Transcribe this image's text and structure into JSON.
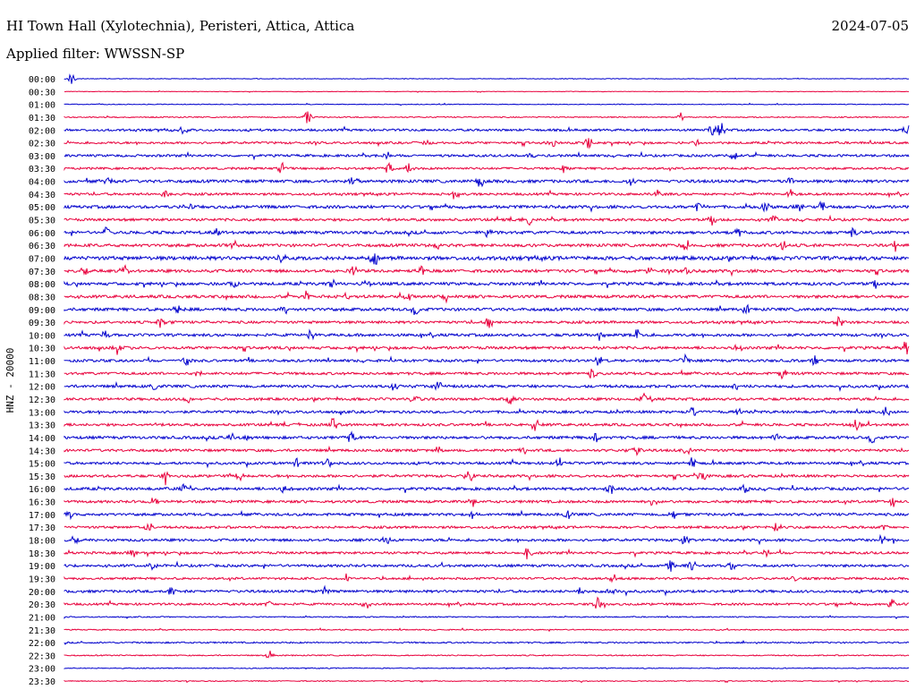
{
  "header": {
    "station": "HI Town Hall (Xylotechnia), Peristeri, Attica, Attica",
    "date": "2024-07-05",
    "filter": "Applied filter: WWSSN-SP"
  },
  "chart_data": {
    "type": "line",
    "description_kind": "helicorder",
    "ylabel": "HNZ - 20000",
    "row_labels": [
      "00:00",
      "00:30",
      "01:00",
      "01:30",
      "02:00",
      "02:30",
      "03:00",
      "03:30",
      "04:00",
      "04:30",
      "05:00",
      "05:30",
      "06:00",
      "06:30",
      "07:00",
      "07:30",
      "08:00",
      "08:30",
      "09:00",
      "09:30",
      "10:00",
      "10:30",
      "11:00",
      "11:30",
      "12:00",
      "12:30",
      "13:00",
      "13:30",
      "14:00",
      "14:30",
      "15:00",
      "15:30",
      "16:00",
      "16:30",
      "17:00",
      "17:30",
      "18:00",
      "18:30",
      "19:00",
      "19:30",
      "20:00",
      "20:30",
      "21:00",
      "21:30",
      "22:00",
      "22:30",
      "23:00",
      "23:30"
    ],
    "colors": [
      "#0000cc",
      "#e8003c"
    ],
    "noise_levels": [
      0.3,
      0.3,
      0.4,
      0.6,
      1.2,
      1.2,
      1.3,
      1.2,
      1.6,
      1.3,
      1.6,
      1.4,
      1.6,
      1.6,
      2.0,
      1.6,
      1.6,
      1.6,
      1.6,
      1.4,
      1.5,
      1.5,
      1.4,
      1.4,
      1.5,
      1.4,
      1.4,
      1.4,
      1.5,
      1.4,
      1.4,
      1.4,
      1.5,
      1.4,
      1.4,
      1.3,
      1.4,
      1.3,
      1.4,
      1.2,
      1.4,
      1.2,
      0.6,
      0.6,
      0.8,
      0.6,
      0.5,
      0.5
    ],
    "events": [
      [
        [
          8,
          5
        ]
      ],
      [],
      [],
      [
        [
          272,
          5
        ],
        [
          689,
          4
        ]
      ],
      [
        [
          133,
          4
        ],
        [
          724,
          5
        ],
        [
          734,
          6
        ],
        [
          942,
          4
        ]
      ],
      [
        [
          545,
          4
        ],
        [
          586,
          4
        ],
        [
          705,
          3
        ],
        [
          405,
          3
        ]
      ],
      [
        [
          362,
          4
        ],
        [
          523,
          4
        ],
        [
          748,
          3
        ]
      ],
      [
        [
          243,
          5
        ],
        [
          385,
          5
        ],
        [
          362,
          4
        ],
        [
          559,
          4
        ]
      ],
      [
        [
          50,
          4
        ],
        [
          323,
          4
        ],
        [
          465,
          5
        ],
        [
          633,
          4
        ],
        [
          812,
          4
        ]
      ],
      [
        [
          113,
          4
        ],
        [
          437,
          4
        ],
        [
          664,
          4
        ],
        [
          812,
          4
        ]
      ],
      [
        [
          139,
          4
        ],
        [
          709,
          4
        ],
        [
          784,
          4
        ],
        [
          822,
          4
        ],
        [
          846,
          4
        ]
      ],
      [
        [
          519,
          4
        ],
        [
          725,
          5
        ],
        [
          792,
          4
        ]
      ],
      [
        [
          47,
          4
        ],
        [
          168,
          4
        ],
        [
          474,
          4
        ],
        [
          754,
          4
        ],
        [
          882,
          4
        ]
      ],
      [
        [
          190,
          4
        ],
        [
          416,
          4
        ],
        [
          695,
          4
        ],
        [
          803,
          5
        ],
        [
          928,
          5
        ]
      ],
      [
        [
          242,
          5
        ],
        [
          346,
          4
        ],
        [
          347,
          4
        ]
      ],
      [
        [
          21,
          4
        ],
        [
          67,
          5
        ],
        [
          323,
          4
        ],
        [
          398,
          4
        ],
        [
          653,
          4
        ],
        [
          695,
          4
        ]
      ],
      [
        [
          190,
          4
        ],
        [
          298,
          4
        ],
        [
          339,
          4
        ],
        [
          906,
          4
        ]
      ],
      [
        [
          270,
          5
        ],
        [
          383,
          4
        ],
        [
          315,
          3
        ],
        [
          427,
          4
        ]
      ],
      [
        [
          126,
          4
        ],
        [
          246,
          4
        ],
        [
          392,
          4
        ],
        [
          762,
          4
        ]
      ],
      [
        [
          108,
          5
        ],
        [
          475,
          5
        ],
        [
          866,
          4
        ]
      ],
      [
        [
          46,
          4
        ],
        [
          275,
          4
        ],
        [
          598,
          4
        ],
        [
          640,
          4
        ]
      ],
      [
        [
          60,
          5
        ],
        [
          754,
          4
        ],
        [
          941,
          5
        ]
      ],
      [
        [
          136,
          4
        ],
        [
          598,
          4
        ],
        [
          693,
          4
        ],
        [
          839,
          4
        ]
      ],
      [
        [
          150,
          4
        ],
        [
          591,
          5
        ],
        [
          803,
          4
        ]
      ],
      [
        [
          100,
          4
        ],
        [
          368,
          4
        ],
        [
          418,
          5
        ],
        [
          752,
          4
        ]
      ],
      [
        [
          139,
          4
        ],
        [
          392,
          4
        ],
        [
          498,
          4
        ],
        [
          647,
          4
        ]
      ],
      [
        [
          703,
          4
        ],
        [
          754,
          4
        ],
        [
          919,
          5
        ]
      ],
      [
        [
          300,
          5
        ],
        [
          526,
          5
        ],
        [
          885,
          5
        ]
      ],
      [
        [
          186,
          4
        ],
        [
          205,
          4
        ],
        [
          320,
          4
        ],
        [
          594,
          4
        ],
        [
          795,
          4
        ],
        [
          903,
          4
        ]
      ],
      [
        [
          418,
          4
        ],
        [
          513,
          4
        ],
        [
          640,
          4
        ],
        [
          697,
          4
        ]
      ],
      [
        [
          259,
          4
        ],
        [
          294,
          4
        ],
        [
          553,
          4
        ],
        [
          702,
          4
        ]
      ],
      [
        [
          113,
          5
        ],
        [
          195,
          4
        ],
        [
          454,
          5
        ],
        [
          712,
          5
        ]
      ],
      [
        [
          132,
          4
        ],
        [
          246,
          4
        ],
        [
          611,
          4
        ],
        [
          762,
          4
        ]
      ],
      [
        [
          100,
          4
        ],
        [
          457,
          4
        ],
        [
          659,
          4
        ],
        [
          927,
          4
        ]
      ],
      [
        [
          5,
          4
        ],
        [
          456,
          4
        ],
        [
          562,
          4
        ],
        [
          682,
          4
        ]
      ],
      [
        [
          94,
          4
        ],
        [
          797,
          4
        ],
        [
          917,
          4
        ]
      ],
      [
        [
          10,
          4
        ],
        [
          360,
          4
        ],
        [
          693,
          4
        ],
        [
          914,
          4
        ]
      ],
      [
        [
          77,
          4
        ],
        [
          518,
          5
        ],
        [
          785,
          4
        ]
      ],
      [
        [
          98,
          4
        ],
        [
          677,
          5
        ],
        [
          702,
          4
        ],
        [
          746,
          4
        ]
      ],
      [
        [
          315,
          4
        ],
        [
          614,
          4
        ],
        [
          815,
          4
        ]
      ],
      [
        [
          118,
          4
        ],
        [
          291,
          4
        ],
        [
          577,
          4
        ],
        [
          612,
          4
        ]
      ],
      [
        [
          228,
          4
        ],
        [
          338,
          4
        ],
        [
          596,
          5
        ],
        [
          924,
          5
        ]
      ],
      [],
      [],
      [],
      [
        [
          230,
          4
        ]
      ],
      [],
      []
    ]
  }
}
